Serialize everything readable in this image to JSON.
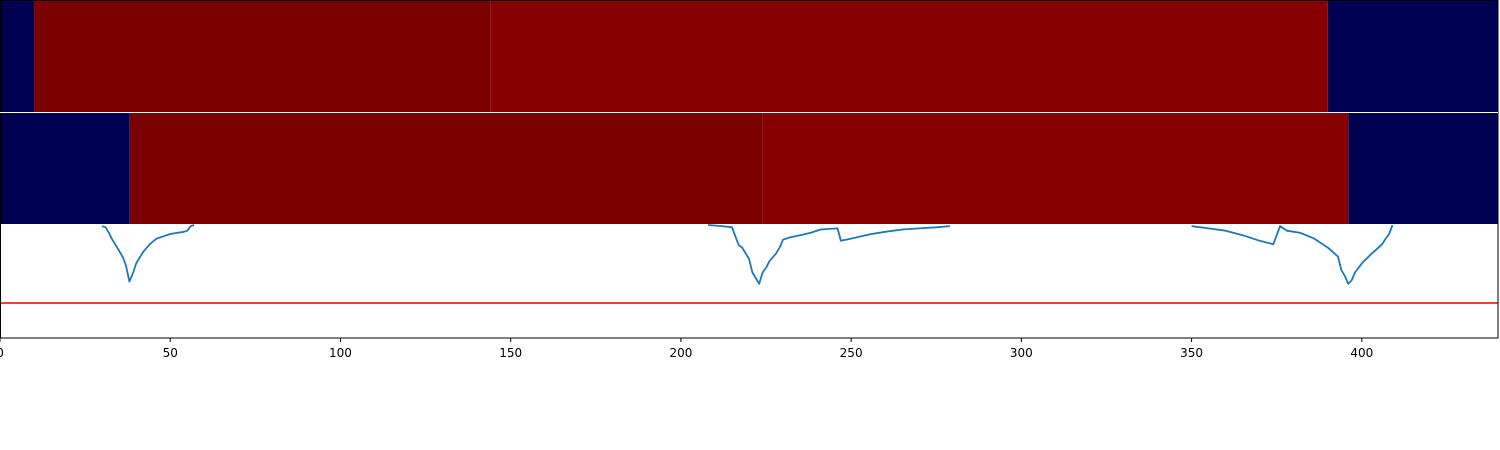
{
  "chart_data": {
    "type": "heatmap",
    "xlim": [
      0,
      440
    ],
    "x_ticks": [
      0,
      50,
      100,
      150,
      200,
      250,
      300,
      350,
      400
    ],
    "x_tick_labels": [
      "0",
      "50",
      "100",
      "150",
      "200",
      "250",
      "300",
      "350",
      "400"
    ],
    "grid": false,
    "legend": "none",
    "colors": {
      "low": "#000050",
      "high_dark": "#7b0000",
      "high_light": "#880000",
      "line": "#1f77b4",
      "threshold": "#e00000",
      "axis": "#000000"
    },
    "heatmap_rows": [
      {
        "segments": [
          {
            "x0": 0,
            "x1": 10,
            "level": "low"
          },
          {
            "x0": 10,
            "x1": 144,
            "level": "high_dark"
          },
          {
            "x0": 144,
            "x1": 390,
            "level": "high_light"
          },
          {
            "x0": 390,
            "x1": 440,
            "level": "low"
          }
        ]
      },
      {
        "segments": [
          {
            "x0": 0,
            "x1": 38,
            "level": "low"
          },
          {
            "x0": 38,
            "x1": 224,
            "level": "high_dark"
          },
          {
            "x0": 224,
            "x1": 396,
            "level": "high_light"
          },
          {
            "x0": 396,
            "x1": 440,
            "level": "low"
          }
        ]
      }
    ],
    "line_series": {
      "ylim": [
        0,
        1
      ],
      "threshold": 0.3,
      "points": [
        [
          30,
          0.99
        ],
        [
          31,
          0.98
        ],
        [
          32,
          0.93
        ],
        [
          33,
          0.87
        ],
        [
          34,
          0.82
        ],
        [
          35,
          0.77
        ],
        [
          36,
          0.72
        ],
        [
          37,
          0.64
        ],
        [
          38,
          0.5
        ],
        [
          39,
          0.57
        ],
        [
          40,
          0.66
        ],
        [
          42,
          0.76
        ],
        [
          44,
          0.83
        ],
        [
          46,
          0.88
        ],
        [
          48,
          0.9
        ],
        [
          50,
          0.92
        ],
        [
          52,
          0.93
        ],
        [
          54,
          0.94
        ],
        [
          55,
          0.95
        ],
        [
          56,
          0.99
        ],
        [
          57,
          1.0
        ],
        [
          208,
          1.0
        ],
        [
          212,
          0.99
        ],
        [
          215,
          0.98
        ],
        [
          216,
          0.9
        ],
        [
          217,
          0.82
        ],
        [
          218,
          0.8
        ],
        [
          220,
          0.7
        ],
        [
          221,
          0.58
        ],
        [
          222,
          0.53
        ],
        [
          223,
          0.48
        ],
        [
          224,
          0.58
        ],
        [
          225,
          0.62
        ],
        [
          226,
          0.68
        ],
        [
          228,
          0.75
        ],
        [
          229,
          0.8
        ],
        [
          230,
          0.87
        ],
        [
          232,
          0.89
        ],
        [
          235,
          0.91
        ],
        [
          238,
          0.93
        ],
        [
          241,
          0.96
        ],
        [
          246,
          0.97
        ],
        [
          247,
          0.86
        ],
        [
          250,
          0.88
        ],
        [
          253,
          0.9
        ],
        [
          256,
          0.92
        ],
        [
          260,
          0.94
        ],
        [
          265,
          0.96
        ],
        [
          270,
          0.97
        ],
        [
          275,
          0.98
        ],
        [
          279,
          0.99
        ],
        [
          350,
          0.99
        ],
        [
          355,
          0.97
        ],
        [
          360,
          0.95
        ],
        [
          365,
          0.91
        ],
        [
          370,
          0.86
        ],
        [
          374,
          0.83
        ],
        [
          376,
          0.99
        ],
        [
          378,
          0.95
        ],
        [
          382,
          0.93
        ],
        [
          386,
          0.88
        ],
        [
          390,
          0.8
        ],
        [
          393,
          0.72
        ],
        [
          394,
          0.6
        ],
        [
          395,
          0.55
        ],
        [
          396,
          0.48
        ],
        [
          397,
          0.51
        ],
        [
          398,
          0.58
        ],
        [
          400,
          0.66
        ],
        [
          403,
          0.75
        ],
        [
          406,
          0.83
        ],
        [
          407,
          0.88
        ],
        [
          408,
          0.92
        ],
        [
          409,
          1.0
        ]
      ]
    }
  }
}
